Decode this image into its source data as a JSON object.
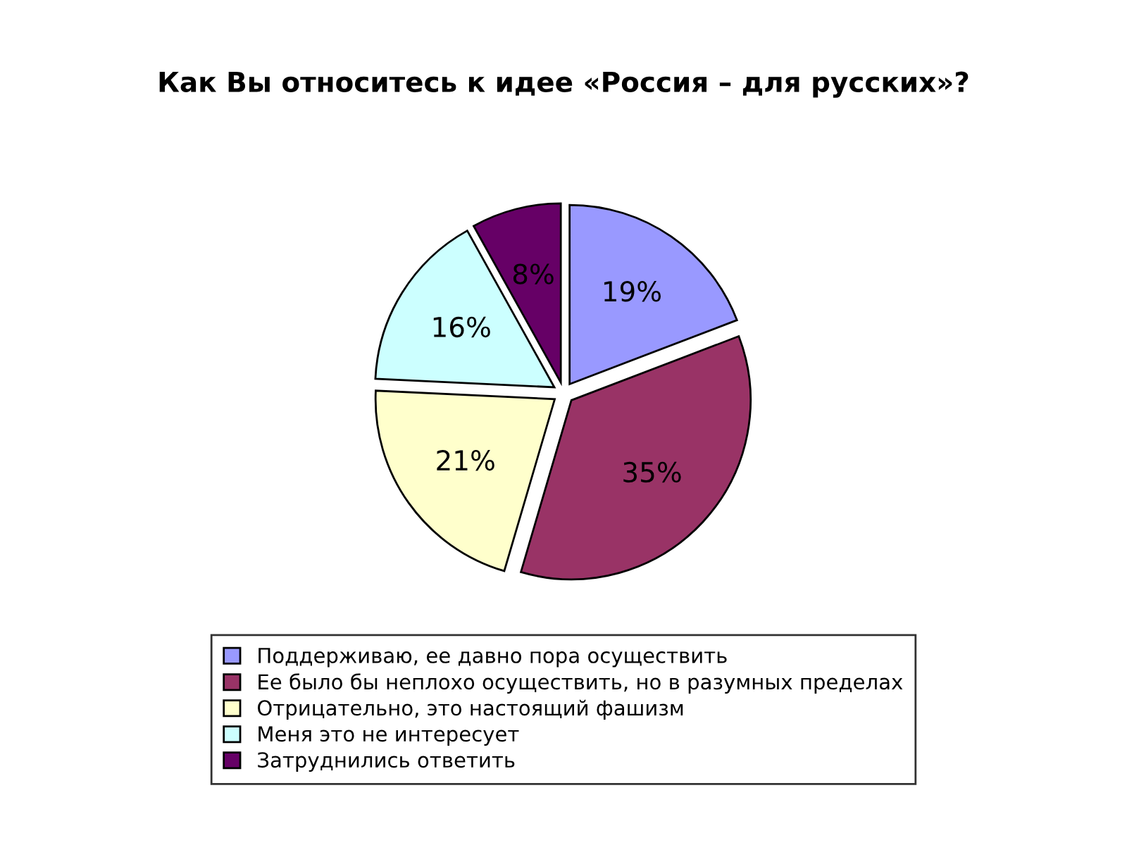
{
  "chart_data": {
    "type": "pie",
    "title": "Как Вы относитесь к идее «Россия – для русских»?",
    "categories": [
      "Поддерживаю, ее давно пора осуществить",
      "Ее было бы неплохо осуществить, но в разумных пределах",
      "Отрицательно, это настоящий фашизм",
      "Меня это не интересует",
      "Затруднились ответить"
    ],
    "values": [
      19,
      35,
      21,
      16,
      8
    ],
    "value_labels": [
      "19%",
      "35%",
      "21%",
      "16%",
      "8%"
    ],
    "colors": [
      "#9999ff",
      "#993366",
      "#ffffcc",
      "#ccffff",
      "#660066"
    ],
    "legend": "bottom"
  }
}
